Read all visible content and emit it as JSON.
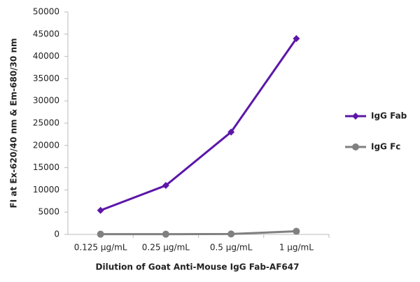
{
  "chart_data": {
    "type": "line",
    "x_label": "Dilution of Goat Anti-Mouse IgG Fab-AF647",
    "y_label": "FI at Ex-620/40 nm & Em-680/30 nm",
    "categories": [
      "0.125 µg/mL",
      "0.25 µg/mL",
      "0.5 µg/mL",
      "1 µg/mL"
    ],
    "series": [
      {
        "name": "IgG Fab",
        "color": "#5c16a8",
        "marker": "diamond",
        "values": [
          5400,
          11000,
          23000,
          44000
        ]
      },
      {
        "name": "IgG Fc",
        "color": "#808080",
        "marker": "circle",
        "values": [
          50,
          50,
          100,
          700
        ]
      }
    ],
    "ylim": [
      0,
      50000
    ],
    "yticks": [
      0,
      5000,
      10000,
      15000,
      20000,
      25000,
      30000,
      35000,
      40000,
      45000,
      50000
    ],
    "grid": false
  }
}
